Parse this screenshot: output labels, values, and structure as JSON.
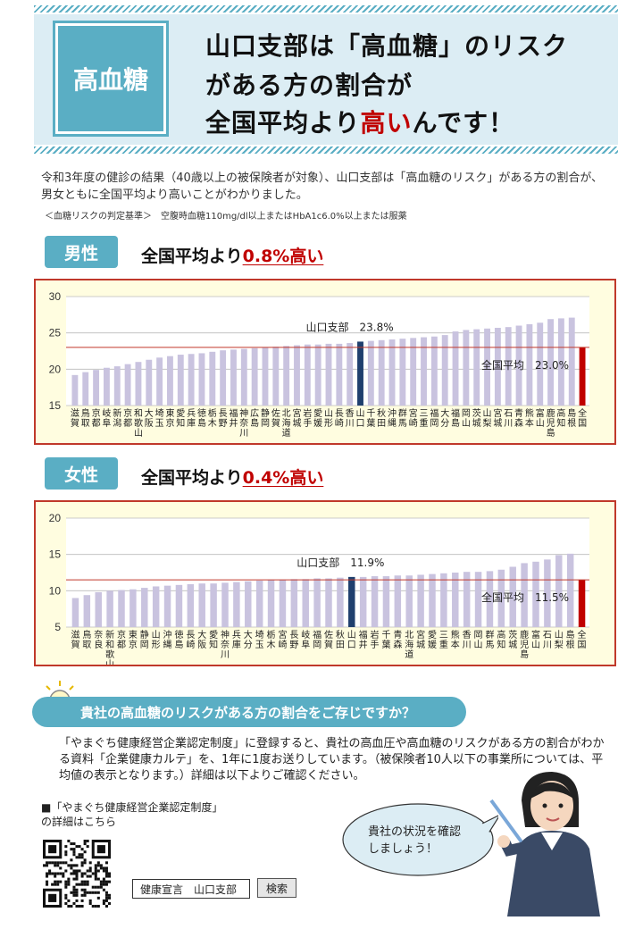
{
  "header": {
    "badge": "高血糖",
    "line1": "山口支部は「高血糖」のリスク",
    "line2": "がある方の割合が",
    "line3_pre": "全国平均より",
    "line3_red": "高い",
    "line3_post": "んです！"
  },
  "intro": "令和3年度の健診の結果（40歳以上の被保険者が対象）、山口支部は「高血糖のリスク」がある方の割合が、男女ともに全国平均より高いことがわかりました。",
  "note": "＜血糖リスクの判定基準＞　空腹時血糖110mg/dl以上またはHbA1c6.0%以上または服薬",
  "male": {
    "tag": "男性",
    "line_pre": "全国平均より",
    "line_red": "0.8%高い"
  },
  "female": {
    "tag": "女性",
    "line_pre": "全国平均より",
    "line_red": "0.4%高い"
  },
  "chart_data": [
    {
      "type": "bar",
      "title": "",
      "ylim": [
        15,
        30
      ],
      "yticks": [
        15,
        20,
        25,
        30
      ],
      "highlight_label": "山口支部　23.8%",
      "avg_label": "全国平均　23.0%",
      "average": 23.0,
      "categories": [
        "滋賀",
        "鳥取",
        "京都",
        "岐阜",
        "新潟",
        "京都",
        "和歌山",
        "大阪",
        "埼玉",
        "東京",
        "愛知",
        "兵庫",
        "徳島",
        "栃木",
        "長野",
        "福井",
        "神奈川",
        "広島",
        "静岡",
        "佐賀",
        "北海道",
        "宮城",
        "岩手",
        "愛媛",
        "山形",
        "長崎",
        "香川",
        "山口",
        "千葉",
        "秋田",
        "沖縄",
        "群馬",
        "宮崎",
        "三重",
        "福岡",
        "大分",
        "福島",
        "岡山",
        "茨城",
        "山梨",
        "宮城",
        "石川",
        "青森",
        "熊本",
        "富山",
        "鹿児島",
        "高知",
        "島根",
        "全国"
      ],
      "values": [
        19.2,
        19.6,
        19.9,
        20.2,
        20.4,
        20.7,
        21.0,
        21.3,
        21.6,
        21.8,
        22.0,
        22.1,
        22.2,
        22.4,
        22.6,
        22.7,
        22.8,
        22.9,
        23.0,
        23.1,
        23.2,
        23.3,
        23.4,
        23.4,
        23.5,
        23.5,
        23.6,
        23.8,
        23.9,
        24.0,
        24.1,
        24.2,
        24.3,
        24.4,
        24.5,
        24.7,
        25.2,
        25.4,
        25.5,
        25.6,
        25.7,
        25.8,
        26.0,
        26.2,
        26.4,
        26.9,
        27.0,
        27.1,
        23.0
      ],
      "highlight_index": 27,
      "national_index": 48
    },
    {
      "type": "bar",
      "title": "",
      "ylim": [
        5,
        20
      ],
      "yticks": [
        5,
        10,
        15,
        20
      ],
      "highlight_label": "山口支部　11.9%",
      "avg_label": "全国平均　11.5%",
      "average": 11.5,
      "categories": [
        "滋賀",
        "鳥取",
        "奈良",
        "新和歌山",
        "京都",
        "東京",
        "静岡",
        "山形",
        "沖縄",
        "徳島",
        "長崎",
        "大阪",
        "愛知",
        "神奈川",
        "兵庫",
        "大分",
        "埼玉",
        "栃木",
        "宮崎",
        "長野",
        "岐阜",
        "福岡",
        "佐賀",
        "秋田",
        "山口",
        "福井",
        "岩手",
        "千葉",
        "青森",
        "北海道",
        "宮城",
        "愛媛",
        "三重",
        "熊本",
        "香川",
        "岡山",
        "群馬",
        "高知",
        "茨城",
        "鹿児島",
        "富山",
        "石川",
        "山梨",
        "島根",
        "全国"
      ],
      "values": [
        9.0,
        9.4,
        9.8,
        10.0,
        10.1,
        10.2,
        10.4,
        10.6,
        10.7,
        10.8,
        10.9,
        11.0,
        11.0,
        11.1,
        11.2,
        11.3,
        11.4,
        11.5,
        11.5,
        11.6,
        11.6,
        11.7,
        11.7,
        11.8,
        11.9,
        11.9,
        12.0,
        12.0,
        12.1,
        12.1,
        12.2,
        12.3,
        12.4,
        12.5,
        12.6,
        12.6,
        12.7,
        12.9,
        13.3,
        13.8,
        14.0,
        14.3,
        14.9,
        15.1,
        11.5
      ],
      "highlight_index": 24,
      "national_index": 44
    }
  ],
  "question": "貴社の高血糖のリスクがある方の割合をご存じですか？",
  "body2": "「やまぐち健康経営企業認定制度」に登録すると、貴社の高血圧や高血糖のリスクがある方の割合がわかる資料「企業健康カルテ」を、1年に1度お送りしています。（被保険者10人以下の事業所については、平均値の表示となります。）詳細は以下よりご確認ください。",
  "detail_line1": "■「やまぐち健康経営企業認定制度」",
  "detail_line2": "の詳細はこちら",
  "search": {
    "query": "健康宣言　山口支部",
    "button": "検索"
  },
  "bubble": {
    "line1": "貴社の状況を確認",
    "line2": "しましょう！"
  },
  "colors": {
    "accent": "#5aaec4",
    "highlight": "#c00000",
    "bar": "#c9c3df",
    "yamaguchi_bar": "#1f3f6e",
    "national_bar": "#c00000"
  }
}
